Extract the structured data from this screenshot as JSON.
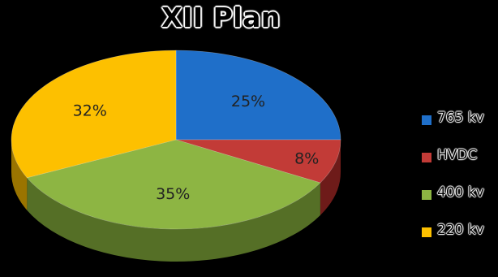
{
  "chart_data": {
    "type": "pie",
    "title": "XII Plan",
    "categories": [
      "765 kv",
      "HVDC",
      "400 kv",
      "220 kv"
    ],
    "values": [
      25,
      8,
      35,
      32
    ],
    "labels": [
      "25%",
      "8%",
      "35%",
      "32%"
    ],
    "colors": [
      "#1F6FC9",
      "#C23B37",
      "#8DB543",
      "#FDC000"
    ],
    "side_colors": [
      "#0F3E75",
      "#6E1B19",
      "#556F26",
      "#9A7400"
    ],
    "legend_position": "right",
    "three_d": true
  }
}
